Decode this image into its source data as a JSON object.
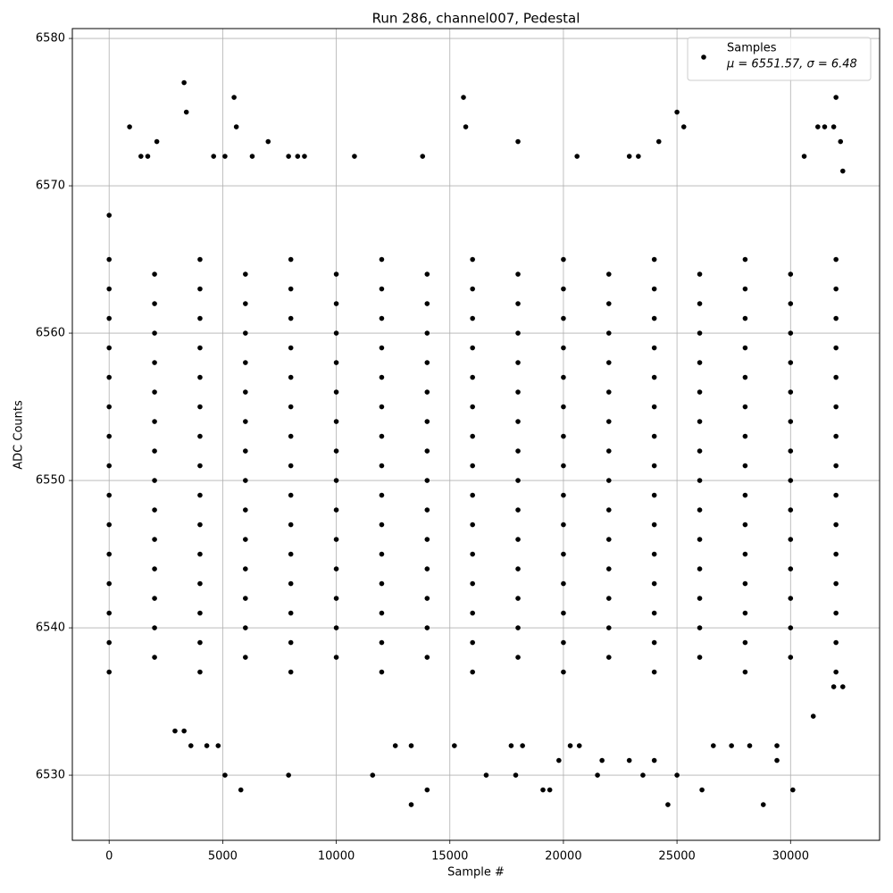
{
  "chart_data": {
    "type": "scatter",
    "title": "Run 286, channel007, Pedestal",
    "x_label": "Sample #",
    "y_label": "ADC Counts",
    "xlim": [
      -1620,
      33920
    ],
    "ylim": [
      6525.58,
      6580.67
    ],
    "xticks": [
      0,
      5000,
      10000,
      15000,
      20000,
      25000,
      30000
    ],
    "yticks": [
      6530,
      6540,
      6550,
      6560,
      6570,
      6580
    ],
    "grid": true,
    "legend": "upper right",
    "series": [
      {
        "name": "Samples",
        "legend_note": "μ = 6551.57, σ = 6.48",
        "color": "#000000",
        "x": [
          0,
          0,
          0,
          0,
          0,
          0,
          0,
          0,
          0,
          0,
          0,
          0,
          0,
          0,
          0,
          2000,
          2000,
          2000,
          2000,
          2000,
          2000,
          2000,
          2000,
          2000,
          2000,
          2000,
          2000,
          2000,
          2000,
          4000,
          4000,
          4000,
          4000,
          4000,
          4000,
          4000,
          4000,
          4000,
          4000,
          4000,
          4000,
          4000,
          4000,
          4000,
          6000,
          6000,
          6000,
          6000,
          6000,
          6000,
          6000,
          6000,
          6000,
          6000,
          6000,
          6000,
          6000,
          6000,
          8000,
          8000,
          8000,
          8000,
          8000,
          8000,
          8000,
          8000,
          8000,
          8000,
          8000,
          8000,
          8000,
          8000,
          8000,
          10000,
          10000,
          10000,
          10000,
          10000,
          10000,
          10000,
          10000,
          10000,
          10000,
          10000,
          10000,
          10000,
          10000,
          12000,
          12000,
          12000,
          12000,
          12000,
          12000,
          12000,
          12000,
          12000,
          12000,
          12000,
          12000,
          12000,
          12000,
          12000,
          14000,
          14000,
          14000,
          14000,
          14000,
          14000,
          14000,
          14000,
          14000,
          14000,
          14000,
          14000,
          14000,
          14000,
          16000,
          16000,
          16000,
          16000,
          16000,
          16000,
          16000,
          16000,
          16000,
          16000,
          16000,
          16000,
          16000,
          16000,
          16000,
          18000,
          18000,
          18000,
          18000,
          18000,
          18000,
          18000,
          18000,
          18000,
          18000,
          18000,
          18000,
          18000,
          18000,
          20000,
          20000,
          20000,
          20000,
          20000,
          20000,
          20000,
          20000,
          20000,
          20000,
          20000,
          20000,
          20000,
          20000,
          20000,
          22000,
          22000,
          22000,
          22000,
          22000,
          22000,
          22000,
          22000,
          22000,
          22000,
          22000,
          22000,
          22000,
          22000,
          24000,
          24000,
          24000,
          24000,
          24000,
          24000,
          24000,
          24000,
          24000,
          24000,
          24000,
          24000,
          24000,
          24000,
          24000,
          26000,
          26000,
          26000,
          26000,
          26000,
          26000,
          26000,
          26000,
          26000,
          26000,
          26000,
          26000,
          26000,
          26000,
          28000,
          28000,
          28000,
          28000,
          28000,
          28000,
          28000,
          28000,
          28000,
          28000,
          28000,
          28000,
          28000,
          28000,
          28000,
          30000,
          30000,
          30000,
          30000,
          30000,
          30000,
          30000,
          30000,
          30000,
          30000,
          30000,
          30000,
          30000,
          30000,
          32000,
          32000,
          32000,
          32000,
          32000,
          32000,
          32000,
          32000,
          32000,
          32000,
          32000,
          32000,
          32000,
          32000,
          32000,
          0,
          3300,
          3400,
          5500,
          5600,
          15600,
          15700,
          25000,
          25300,
          32000,
          32200,
          32300,
          900,
          2100,
          7000,
          10800,
          18000,
          24200,
          1400,
          1700,
          4600,
          5100,
          6300,
          7900,
          8300,
          8600,
          13800,
          20600,
          22900,
          23300,
          30600,
          31200,
          31500,
          31900,
          5100,
          5800,
          7900,
          11600,
          13300,
          14000,
          16600,
          17900,
          19100,
          19400,
          19800,
          21500,
          21700,
          22900,
          23500,
          24000,
          24600,
          25000,
          26100,
          28800,
          29400,
          30100,
          2900,
          3300,
          3600,
          4300,
          4800,
          12600,
          13300,
          15200,
          17700,
          18200,
          20300,
          20700,
          26600,
          27400,
          28200,
          29400,
          31000,
          31900,
          32300
        ],
        "values": [
          6537,
          6539,
          6541,
          6543,
          6545,
          6547,
          6549,
          6551,
          6553,
          6555,
          6557,
          6559,
          6561,
          6563,
          6565,
          6538,
          6540,
          6542,
          6544,
          6546,
          6548,
          6550,
          6552,
          6554,
          6556,
          6558,
          6560,
          6562,
          6564,
          6537,
          6539,
          6541,
          6543,
          6545,
          6547,
          6549,
          6551,
          6553,
          6555,
          6557,
          6559,
          6561,
          6563,
          6565,
          6538,
          6540,
          6542,
          6544,
          6546,
          6548,
          6550,
          6552,
          6554,
          6556,
          6558,
          6560,
          6562,
          6564,
          6537,
          6539,
          6541,
          6543,
          6545,
          6547,
          6549,
          6551,
          6553,
          6555,
          6557,
          6559,
          6561,
          6563,
          6565,
          6538,
          6540,
          6542,
          6544,
          6546,
          6548,
          6550,
          6552,
          6554,
          6556,
          6558,
          6560,
          6562,
          6564,
          6537,
          6539,
          6541,
          6543,
          6545,
          6547,
          6549,
          6551,
          6553,
          6555,
          6557,
          6559,
          6561,
          6563,
          6565,
          6538,
          6540,
          6542,
          6544,
          6546,
          6548,
          6550,
          6552,
          6554,
          6556,
          6558,
          6560,
          6562,
          6564,
          6537,
          6539,
          6541,
          6543,
          6545,
          6547,
          6549,
          6551,
          6553,
          6555,
          6557,
          6559,
          6561,
          6563,
          6565,
          6538,
          6540,
          6542,
          6544,
          6546,
          6548,
          6550,
          6552,
          6554,
          6556,
          6558,
          6560,
          6562,
          6564,
          6537,
          6539,
          6541,
          6543,
          6545,
          6547,
          6549,
          6551,
          6553,
          6555,
          6557,
          6559,
          6561,
          6563,
          6565,
          6538,
          6540,
          6542,
          6544,
          6546,
          6548,
          6550,
          6552,
          6554,
          6556,
          6558,
          6560,
          6562,
          6564,
          6537,
          6539,
          6541,
          6543,
          6545,
          6547,
          6549,
          6551,
          6553,
          6555,
          6557,
          6559,
          6561,
          6563,
          6565,
          6538,
          6540,
          6542,
          6544,
          6546,
          6548,
          6550,
          6552,
          6554,
          6556,
          6558,
          6560,
          6562,
          6564,
          6537,
          6539,
          6541,
          6543,
          6545,
          6547,
          6549,
          6551,
          6553,
          6555,
          6557,
          6559,
          6561,
          6563,
          6565,
          6538,
          6540,
          6542,
          6544,
          6546,
          6548,
          6550,
          6552,
          6554,
          6556,
          6558,
          6560,
          6562,
          6564,
          6537,
          6539,
          6541,
          6543,
          6545,
          6547,
          6549,
          6551,
          6553,
          6555,
          6557,
          6559,
          6561,
          6563,
          6565,
          6568,
          6577,
          6575,
          6576,
          6574,
          6576,
          6574,
          6575,
          6574,
          6576,
          6573,
          6571,
          6574,
          6573,
          6573,
          6572,
          6573,
          6573,
          6572,
          6572,
          6572,
          6572,
          6572,
          6572,
          6572,
          6572,
          6572,
          6572,
          6572,
          6572,
          6572,
          6574,
          6574,
          6574,
          6530,
          6529,
          6530,
          6530,
          6528,
          6529,
          6530,
          6530,
          6529,
          6529,
          6531,
          6530,
          6531,
          6531,
          6530,
          6531,
          6528,
          6530,
          6529,
          6528,
          6531,
          6529,
          6533,
          6533,
          6532,
          6532,
          6532,
          6532,
          6532,
          6532,
          6532,
          6532,
          6532,
          6532,
          6532,
          6532,
          6532,
          6532,
          6534,
          6536,
          6536
        ]
      }
    ]
  }
}
